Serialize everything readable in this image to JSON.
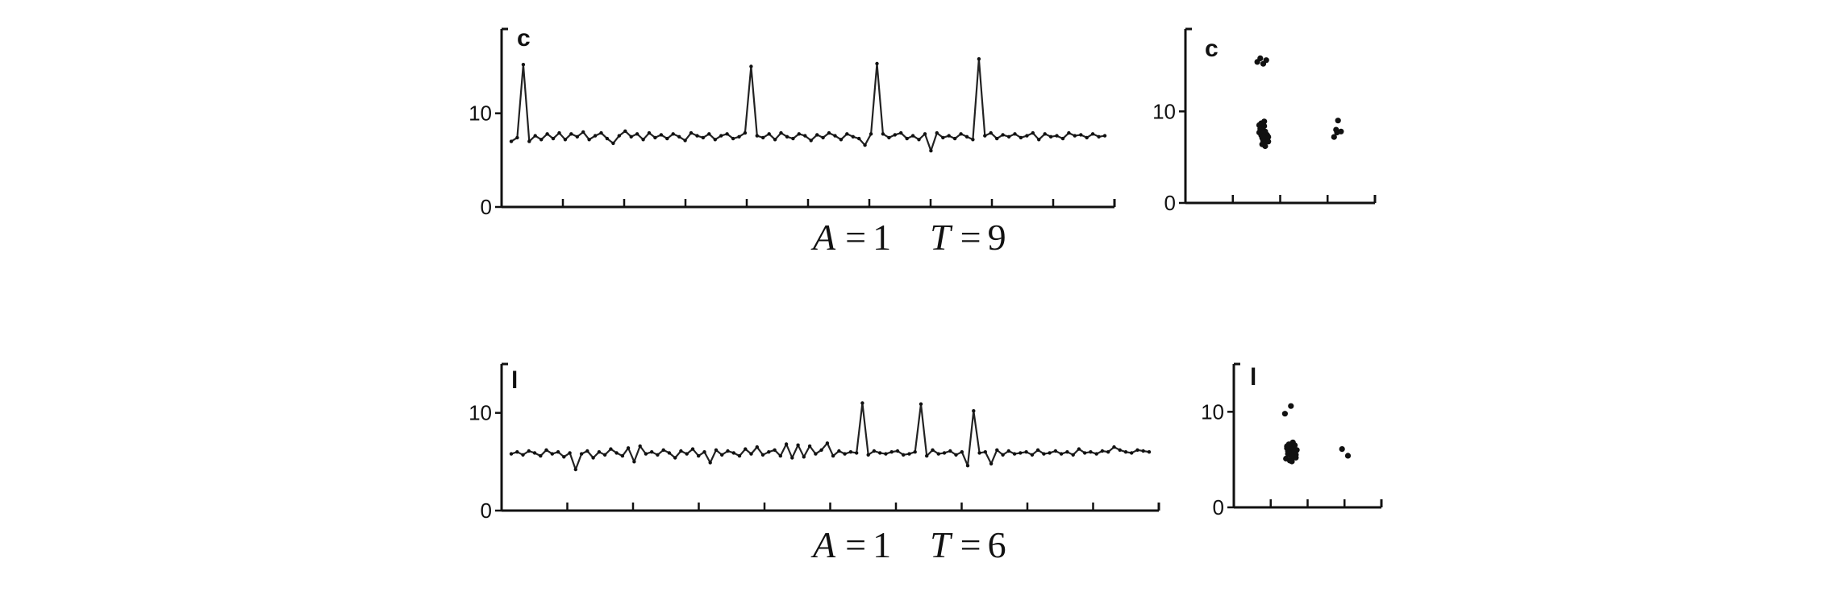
{
  "chart_data": [
    {
      "id": "c_series",
      "type": "line",
      "panel_label": "c",
      "caption": {
        "a_label": "A",
        "a_value": "1",
        "t_label": "T",
        "t_value": "9"
      },
      "ylim": [
        0,
        19
      ],
      "yticks": [
        {
          "value": 0,
          "label": "0"
        },
        {
          "value": 10,
          "label": "10"
        }
      ],
      "x": [
        0,
        1,
        2,
        3,
        4,
        5,
        6,
        7,
        8,
        9,
        10,
        11,
        12,
        13,
        14,
        15,
        16,
        17,
        18,
        19,
        20,
        21,
        22,
        23,
        24,
        25,
        26,
        27,
        28,
        29,
        30,
        31,
        32,
        33,
        34,
        35,
        36,
        37,
        38,
        39,
        40,
        41,
        42,
        43,
        44,
        45,
        46,
        47,
        48,
        49,
        50,
        51,
        52,
        53,
        54,
        55,
        56,
        57,
        58,
        59,
        60,
        61,
        62,
        63,
        64,
        65,
        66,
        67,
        68,
        69,
        70,
        71,
        72,
        73,
        74,
        75,
        76,
        77,
        78,
        79,
        80,
        81,
        82,
        83,
        84,
        85,
        86,
        87,
        88,
        89,
        90,
        91,
        92,
        93,
        94,
        95,
        96,
        97,
        98,
        99
      ],
      "values": [
        7.0,
        7.4,
        15.2,
        7.0,
        7.6,
        7.2,
        7.8,
        7.3,
        7.9,
        7.2,
        7.8,
        7.5,
        8.0,
        7.2,
        7.6,
        7.9,
        7.3,
        6.8,
        7.6,
        8.1,
        7.5,
        7.8,
        7.2,
        7.9,
        7.4,
        7.7,
        7.3,
        7.8,
        7.5,
        7.1,
        7.9,
        7.6,
        7.4,
        7.8,
        7.2,
        7.6,
        7.8,
        7.3,
        7.5,
        7.9,
        15.0,
        7.6,
        7.4,
        7.8,
        7.2,
        7.9,
        7.5,
        7.3,
        7.8,
        7.6,
        7.1,
        7.7,
        7.4,
        7.9,
        7.6,
        7.2,
        7.8,
        7.5,
        7.3,
        6.6,
        7.8,
        15.3,
        7.8,
        7.4,
        7.7,
        7.9,
        7.3,
        7.6,
        7.2,
        7.8,
        6.0,
        7.9,
        7.4,
        7.6,
        7.3,
        7.8,
        7.5,
        7.2,
        15.8,
        7.6,
        7.9,
        7.3,
        7.7,
        7.5,
        7.8,
        7.4,
        7.6,
        7.9,
        7.2,
        7.8,
        7.5,
        7.6,
        7.3,
        7.9,
        7.6,
        7.7,
        7.4,
        7.8,
        7.5,
        7.6
      ],
      "xlabel": "",
      "ylabel": ""
    },
    {
      "id": "c_map",
      "type": "scatter",
      "panel_label": "c",
      "xlim": [
        0,
        19
      ],
      "ylim": [
        0,
        19
      ],
      "yticks": [
        {
          "value": 0,
          "label": "0"
        },
        {
          "value": 10,
          "label": "10"
        }
      ],
      "x": [
        7.2,
        7.5,
        7.8,
        8.1,
        7.6,
        7.9,
        7.8,
        8.2,
        7.4,
        7.7,
        8.0,
        7.6,
        7.9,
        8.3,
        7.5,
        7.8,
        8.1,
        7.7,
        7.4,
        8.0,
        7.9,
        7.6,
        8.2,
        7.8,
        14.9,
        15.2,
        15.1,
        15.3,
        15.6,
        7.7,
        7.9,
        8.0,
        7.8,
        8.3
      ],
      "y": [
        15.4,
        15.8,
        15.2,
        15.6,
        8.0,
        7.2,
        7.9,
        7.4,
        8.5,
        7.1,
        7.8,
        8.7,
        6.6,
        7.2,
        8.1,
        6.8,
        7.5,
        8.2,
        7.7,
        6.9,
        8.4,
        7.4,
        7.0,
        7.6,
        7.2,
        7.7,
        8.0,
        9.0,
        7.8,
        6.4,
        8.9,
        6.2,
        7.3,
        6.7
      ],
      "xlabel": "",
      "ylabel": ""
    },
    {
      "id": "l_series",
      "type": "line",
      "panel_label": "l",
      "caption": {
        "a_label": "A",
        "a_value": "1",
        "t_label": "T",
        "t_value": "6"
      },
      "ylim": [
        0,
        15
      ],
      "yticks": [
        {
          "value": 0,
          "label": "0"
        },
        {
          "value": 10,
          "label": "10"
        }
      ],
      "x": [
        0,
        1,
        2,
        3,
        4,
        5,
        6,
        7,
        8,
        9,
        10,
        11,
        12,
        13,
        14,
        15,
        16,
        17,
        18,
        19,
        20,
        21,
        22,
        23,
        24,
        25,
        26,
        27,
        28,
        29,
        30,
        31,
        32,
        33,
        34,
        35,
        36,
        37,
        38,
        39,
        40,
        41,
        42,
        43,
        44,
        45,
        46,
        47,
        48,
        49,
        50,
        51,
        52,
        53,
        54,
        55,
        56,
        57,
        58,
        59,
        60,
        61,
        62,
        63,
        64,
        65,
        66,
        67,
        68,
        69,
        70,
        71,
        72,
        73,
        74,
        75,
        76,
        77,
        78,
        79,
        80,
        81,
        82,
        83,
        84,
        85,
        86,
        87,
        88,
        89,
        90,
        91,
        92,
        93,
        94,
        95,
        96,
        97,
        98,
        99,
        100,
        101,
        102,
        103,
        104,
        105,
        106,
        107,
        108,
        109
      ],
      "values": [
        5.8,
        6.0,
        5.7,
        6.1,
        5.9,
        5.6,
        6.2,
        5.8,
        6.0,
        5.5,
        5.9,
        4.2,
        5.8,
        6.1,
        5.4,
        6.0,
        5.7,
        6.3,
        5.9,
        5.6,
        6.4,
        5.0,
        6.6,
        5.8,
        6.0,
        5.7,
        6.2,
        5.9,
        5.4,
        6.1,
        5.8,
        6.3,
        5.6,
        6.0,
        4.9,
        6.2,
        5.7,
        6.1,
        5.9,
        5.6,
        6.3,
        5.8,
        6.5,
        5.7,
        6.0,
        6.2,
        5.6,
        6.8,
        5.4,
        6.7,
        5.5,
        6.6,
        5.8,
        6.2,
        6.9,
        5.6,
        6.1,
        5.8,
        6.0,
        5.9,
        11.0,
        5.7,
        6.1,
        5.9,
        5.8,
        6.0,
        6.1,
        5.7,
        5.8,
        6.0,
        10.9,
        5.6,
        6.2,
        5.8,
        5.9,
        6.1,
        5.7,
        6.0,
        4.6,
        10.2,
        5.9,
        6.0,
        4.8,
        6.2,
        5.7,
        6.1,
        5.8,
        5.9,
        6.0,
        5.7,
        6.2,
        5.8,
        5.9,
        6.1,
        5.8,
        6.0,
        5.7,
        6.3,
        5.9,
        6.0,
        5.8,
        6.1,
        6.0,
        6.5,
        6.2,
        6.0,
        5.9,
        6.2,
        6.1,
        6.0
      ],
      "xlabel": "",
      "ylabel": ""
    },
    {
      "id": "l_map",
      "type": "scatter",
      "panel_label": "l",
      "xlim": [
        0,
        15
      ],
      "ylim": [
        0,
        15
      ],
      "yticks": [
        {
          "value": 0,
          "label": "0"
        },
        {
          "value": 10,
          "label": "10"
        }
      ],
      "x": [
        5.2,
        5.8,
        11.0,
        11.6,
        5.4,
        5.7,
        6.0,
        6.3,
        5.5,
        5.9,
        6.2,
        5.3,
        5.8,
        6.1,
        5.6,
        6.4,
        5.9,
        5.5,
        6.0,
        6.3,
        5.7,
        5.4,
        6.1,
        5.8,
        6.2,
        5.6,
        5.9
      ],
      "y": [
        9.8,
        10.6,
        6.1,
        5.4,
        6.2,
        5.5,
        6.8,
        5.2,
        5.9,
        6.4,
        5.7,
        5.1,
        6.0,
        5.3,
        6.6,
        6.0,
        4.8,
        5.6,
        6.2,
        5.5,
        4.9,
        6.4,
        5.8,
        5.0,
        6.5,
        5.7,
        5.4
      ],
      "xlabel": "",
      "ylabel": ""
    }
  ]
}
